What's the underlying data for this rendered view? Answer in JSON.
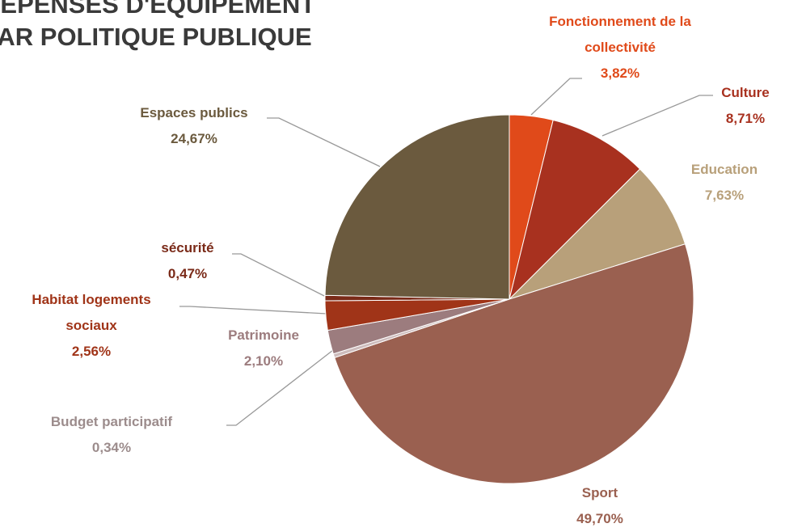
{
  "chart_data": {
    "type": "pie",
    "title": [
      "DÉPENSES D'ÉQUIPEMENT",
      "PAR POLITIQUE PUBLIQUE"
    ],
    "categories": [
      "Fonctionnement de la collectivité",
      "Culture",
      "Education",
      "Sport",
      "Budget participatif",
      "Patrimoine",
      "Habitat logements sociaux",
      "sécurité",
      "Espaces publics"
    ],
    "values": [
      3.82,
      8.71,
      7.63,
      49.7,
      0.34,
      2.1,
      2.56,
      0.47,
      24.67
    ],
    "value_labels": [
      "3,82%",
      "8,71%",
      "7,63%",
      "49,70%",
      "0,34%",
      "2,10%",
      "2,56%",
      "0,47%",
      "24,67%"
    ],
    "colors": [
      "#e04a1a",
      "#a8311f",
      "#b8a07a",
      "#9a6050",
      "#cdbcbc",
      "#9c7c7e",
      "#a03418",
      "#7a2a18",
      "#6b5a3e"
    ]
  }
}
